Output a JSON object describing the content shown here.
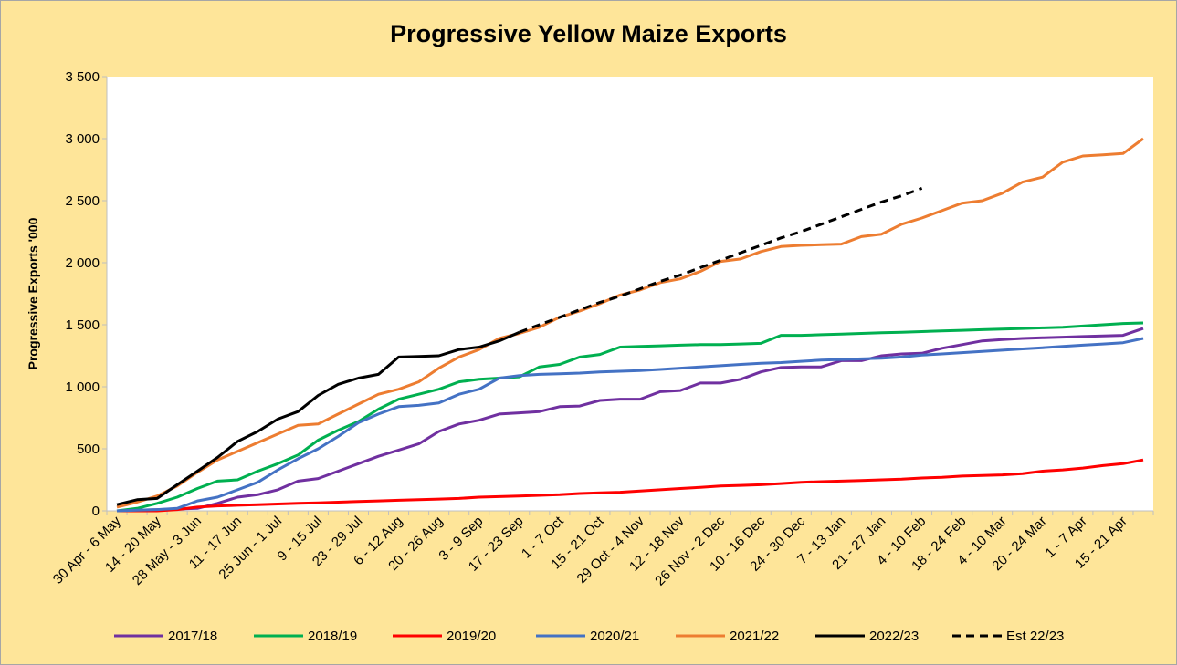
{
  "chart_data": {
    "type": "line",
    "title": "Progressive Yellow Maize Exports",
    "xlabel": "",
    "ylabel": "Progressive Exports '000",
    "ylim": [
      0,
      3500
    ],
    "yticks": [
      0,
      500,
      1000,
      1500,
      2000,
      2500,
      3000,
      3500
    ],
    "ytick_labels": [
      "0",
      "500",
      "1 000",
      "1 500",
      "2 000",
      "2 500",
      "3 000",
      "3 500"
    ],
    "num_points": 52,
    "x_tick_labels": [
      "30 Apr - 6 May",
      "14 - 20 May",
      "28 May - 3 Jun",
      "11 - 17 Jun",
      "25 Jun - 1 Jul",
      "9 - 15 Jul",
      "23 - 29 Jul",
      "6 - 12 Aug",
      "20 - 26 Aug",
      "3 - 9 Sep",
      "17 - 23 Sep",
      "1 - 7 Oct",
      "15 - 21 Oct",
      "29 Oct - 4 Nov",
      "12 - 18 Nov",
      "26 Nov - 2 Dec",
      "10 - 16 Dec",
      "24 - 30 Dec",
      "7 - 13 Jan",
      "21 - 27 Jan",
      "4 - 10 Feb",
      "18 - 24 Feb",
      "4 - 10 Mar",
      "20 - 24 Mar",
      "1 - 7 Apr",
      "15 - 21 Apr"
    ],
    "legend_position": "bottom",
    "grid": false,
    "series": [
      {
        "name": "2017/18",
        "color": "#7030a0",
        "dash": false,
        "values": [
          0,
          5,
          10,
          15,
          20,
          60,
          110,
          130,
          170,
          240,
          260,
          320,
          380,
          440,
          490,
          540,
          640,
          700,
          730,
          780,
          790,
          800,
          840,
          845,
          890,
          900,
          900,
          960,
          970,
          1030,
          1030,
          1060,
          1120,
          1155,
          1160,
          1160,
          1210,
          1210,
          1250,
          1265,
          1270,
          1310,
          1340,
          1370,
          1380,
          1390,
          1395,
          1400,
          1405,
          1410,
          1415,
          1470
        ]
      },
      {
        "name": "2018/19",
        "color": "#00b050",
        "dash": false,
        "values": [
          0,
          20,
          60,
          110,
          180,
          240,
          250,
          320,
          380,
          450,
          570,
          650,
          720,
          820,
          900,
          940,
          980,
          1040,
          1060,
          1070,
          1080,
          1160,
          1180,
          1240,
          1260,
          1320,
          1325,
          1330,
          1335,
          1340,
          1340,
          1345,
          1350,
          1415,
          1415,
          1420,
          1425,
          1430,
          1435,
          1440,
          1445,
          1450,
          1455,
          1460,
          1465,
          1470,
          1475,
          1480,
          1490,
          1500,
          1510,
          1515
        ]
      },
      {
        "name": "2019/20",
        "color": "#ff0000",
        "dash": false,
        "values": [
          0,
          0,
          0,
          10,
          30,
          40,
          45,
          50,
          55,
          60,
          65,
          70,
          75,
          80,
          85,
          90,
          95,
          100,
          110,
          115,
          120,
          125,
          130,
          140,
          145,
          150,
          160,
          170,
          180,
          190,
          200,
          205,
          210,
          220,
          230,
          235,
          240,
          245,
          250,
          255,
          265,
          270,
          280,
          285,
          290,
          300,
          320,
          330,
          345,
          365,
          380,
          410
        ]
      },
      {
        "name": "2020/21",
        "color": "#4472c4",
        "dash": false,
        "values": [
          0,
          5,
          10,
          20,
          80,
          110,
          170,
          230,
          330,
          420,
          500,
          600,
          710,
          780,
          840,
          850,
          870,
          940,
          980,
          1070,
          1090,
          1100,
          1105,
          1110,
          1120,
          1125,
          1130,
          1140,
          1150,
          1160,
          1170,
          1180,
          1190,
          1195,
          1205,
          1215,
          1220,
          1225,
          1230,
          1240,
          1255,
          1265,
          1275,
          1285,
          1295,
          1305,
          1315,
          1325,
          1335,
          1345,
          1355,
          1390
        ]
      },
      {
        "name": "2021/22",
        "color": "#ed7d31",
        "dash": false,
        "values": [
          30,
          70,
          120,
          200,
          310,
          410,
          480,
          550,
          620,
          690,
          700,
          780,
          860,
          940,
          980,
          1040,
          1150,
          1240,
          1300,
          1390,
          1430,
          1480,
          1560,
          1610,
          1670,
          1740,
          1780,
          1840,
          1870,
          1930,
          2010,
          2030,
          2090,
          2130,
          2140,
          2145,
          2150,
          2210,
          2230,
          2310,
          2360,
          2420,
          2480,
          2500,
          2560,
          2650,
          2690,
          2810,
          2860,
          2870,
          2880,
          3000
        ]
      },
      {
        "name": "2022/23",
        "color": "#000000",
        "dash": false,
        "values": [
          50,
          90,
          100,
          210,
          320,
          430,
          560,
          640,
          740,
          800,
          930,
          1020,
          1070,
          1100,
          1240,
          1245,
          1250,
          1300,
          1320,
          1370,
          1440
        ]
      },
      {
        "name": "Est 22/23",
        "color": "#000000",
        "dash": true,
        "start_index": 20,
        "values": [
          1440,
          1500,
          1560,
          1620,
          1680,
          1730,
          1790,
          1850,
          1900,
          1960,
          2020,
          2080,
          2140,
          2200,
          2250,
          2310,
          2370,
          2430,
          2490,
          2540,
          2600
        ]
      }
    ]
  }
}
